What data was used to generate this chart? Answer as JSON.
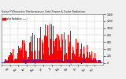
{
  "title": "Solar PV/Inverter Performance Grid Power & Solar Radiation",
  "legend_red": "Solar Radiation",
  "legend_blue": "---",
  "bg_color": "#f0f0f0",
  "plot_bg": "#ffffff",
  "grid_color": "#aaaaaa",
  "bar_color": "#ff0000",
  "line_color": "#0000ff",
  "y_min": -50,
  "y_max": 1400,
  "y_ticks": [
    0,
    200,
    400,
    600,
    800,
    1000,
    1200,
    1400
  ],
  "n_bars": 365,
  "seed": 12
}
